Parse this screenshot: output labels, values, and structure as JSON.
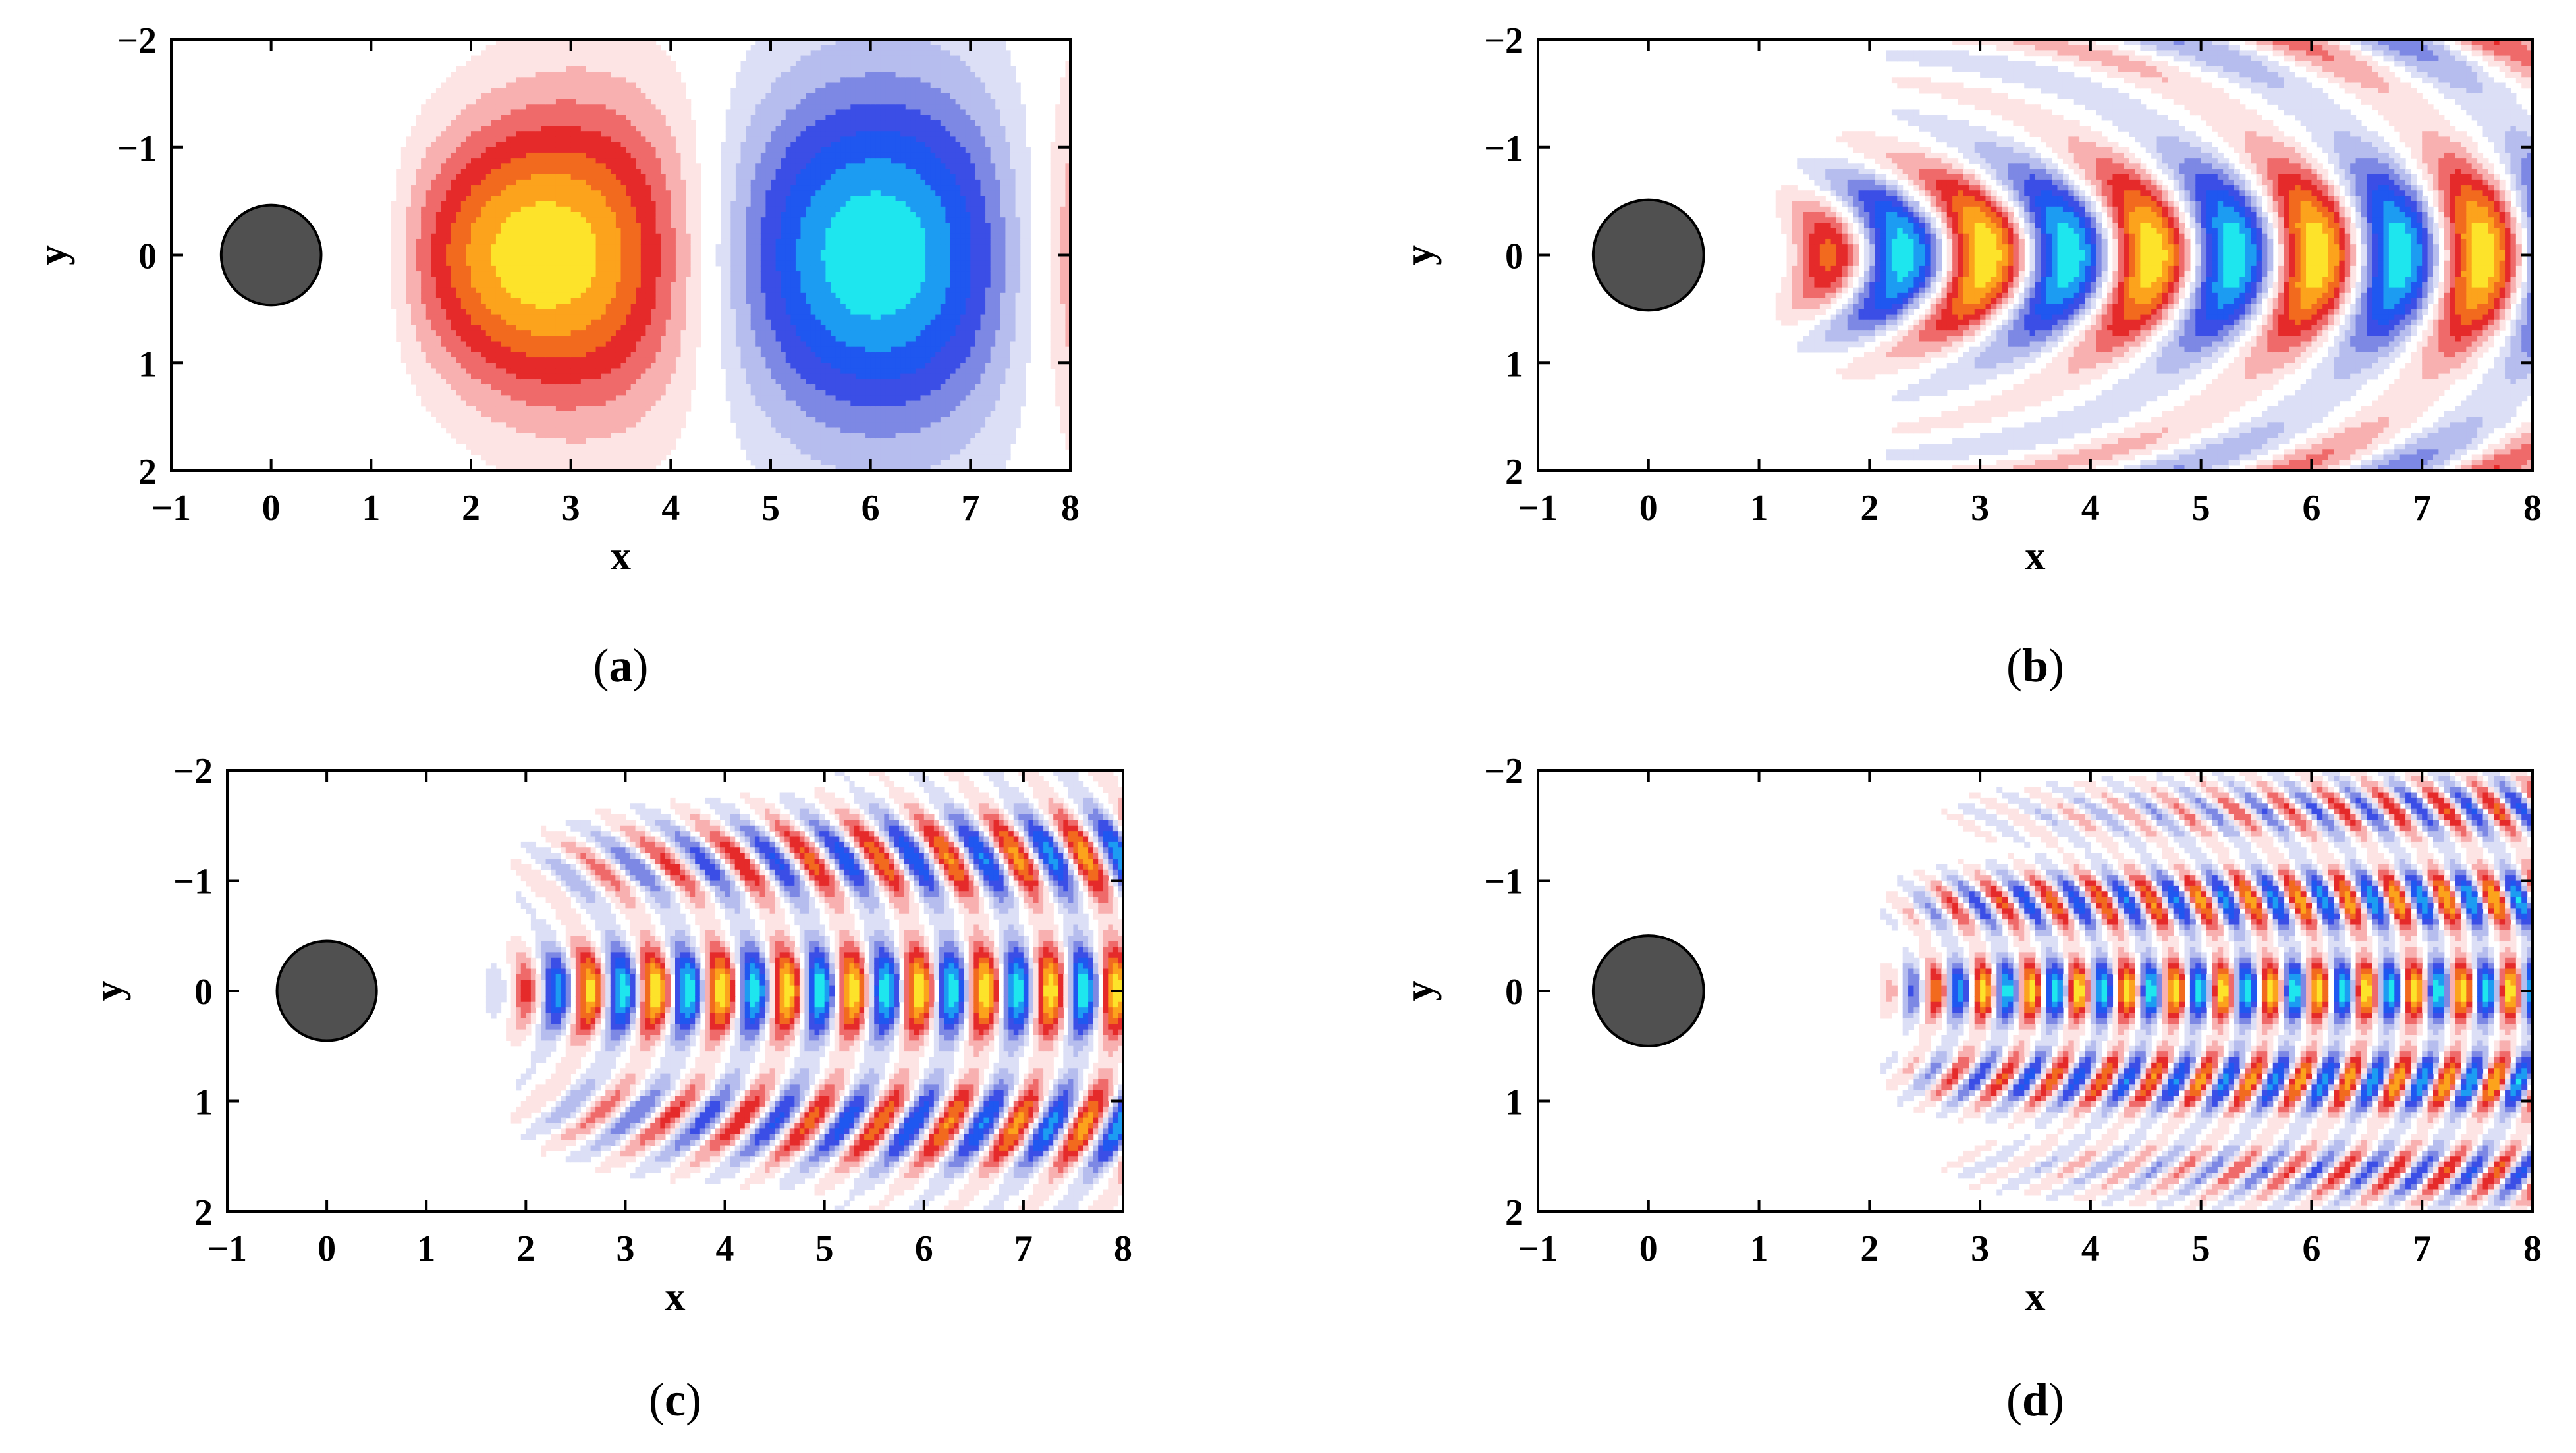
{
  "chart_data": [
    {
      "type": "contour",
      "panel": "a",
      "caption": "(a)",
      "xlabel": "x",
      "ylabel": "y",
      "xlim": [
        -1,
        8
      ],
      "ylim": [
        2,
        -2
      ],
      "xticks": [
        -1,
        0,
        1,
        2,
        3,
        4,
        5,
        6,
        7,
        8
      ],
      "yticks": [
        -2,
        -1,
        0,
        1,
        2
      ],
      "cylinder": {
        "cx": 0,
        "cy": 0,
        "r": 0.5
      },
      "mode": {
        "kx": 0.95,
        "kc": 0,
        "phase": 2.6,
        "ky": 1.25,
        "x0": 0.5,
        "ramp": 0.6,
        "slope": 0.55,
        "xmax": 8
      }
    },
    {
      "type": "contour",
      "panel": "b",
      "caption": "(b)",
      "xlabel": "x",
      "ylabel": "y",
      "xlim": [
        -1,
        8
      ],
      "ylim": [
        2,
        -2
      ],
      "xticks": [
        -1,
        0,
        1,
        2,
        3,
        4,
        5,
        6,
        7,
        8
      ],
      "yticks": [
        -2,
        -1,
        0,
        1,
        2
      ],
      "cylinder": {
        "cx": 0,
        "cy": 0,
        "r": 0.5
      },
      "mode": {
        "kx": 4.2,
        "kc": 5.5,
        "phase": 0.3,
        "ky": 2.4,
        "x0": 0.8,
        "ramp": 0.8,
        "slope": 0.42,
        "xmax": 8
      }
    },
    {
      "type": "contour",
      "panel": "c",
      "caption": "(c)",
      "xlabel": "x",
      "ylabel": "y",
      "xlim": [
        -1,
        8
      ],
      "ylim": [
        2,
        -2
      ],
      "xticks": [
        -1,
        0,
        1,
        2,
        3,
        4,
        5,
        6,
        7,
        8
      ],
      "yticks": [
        -2,
        -1,
        0,
        1,
        2
      ],
      "cylinder": {
        "cx": 0,
        "cy": 0,
        "r": 0.5
      },
      "mode": {
        "kx": 9.5,
        "kc": 5.5,
        "phase": 0.0,
        "ky": 5.0,
        "x0": 1.4,
        "ramp": 0.7,
        "slope": 0.3,
        "xmax": 8
      }
    },
    {
      "type": "contour",
      "panel": "d",
      "caption": "(d)",
      "xlabel": "x",
      "ylabel": "y",
      "xlim": [
        -1,
        8
      ],
      "ylim": [
        2,
        -2
      ],
      "xticks": [
        -1,
        0,
        1,
        2,
        3,
        4,
        5,
        6,
        7,
        8
      ],
      "yticks": [
        -2,
        -1,
        0,
        1,
        2
      ],
      "cylinder": {
        "cx": 0,
        "cy": 0,
        "r": 0.5
      },
      "mode": {
        "kx": 14.5,
        "kc": 7.5,
        "phase": 0.0,
        "ky": 7.5,
        "x0": 1.8,
        "ramp": 0.7,
        "slope": 0.28,
        "xmax": 8
      }
    }
  ],
  "colors": {
    "positive": [
      "#fde4e4",
      "#f8b0b0",
      "#ef6a6a",
      "#e52a2a",
      "#f26a1e",
      "#fca31c",
      "#fde32a"
    ],
    "negative": [
      "#dcdff6",
      "#b6bdee",
      "#7d88e4",
      "#3b4ee6",
      "#1f57f0",
      "#1c9cf2",
      "#1ee6ee"
    ],
    "cylinder": "#505050",
    "axes": "#000000"
  }
}
